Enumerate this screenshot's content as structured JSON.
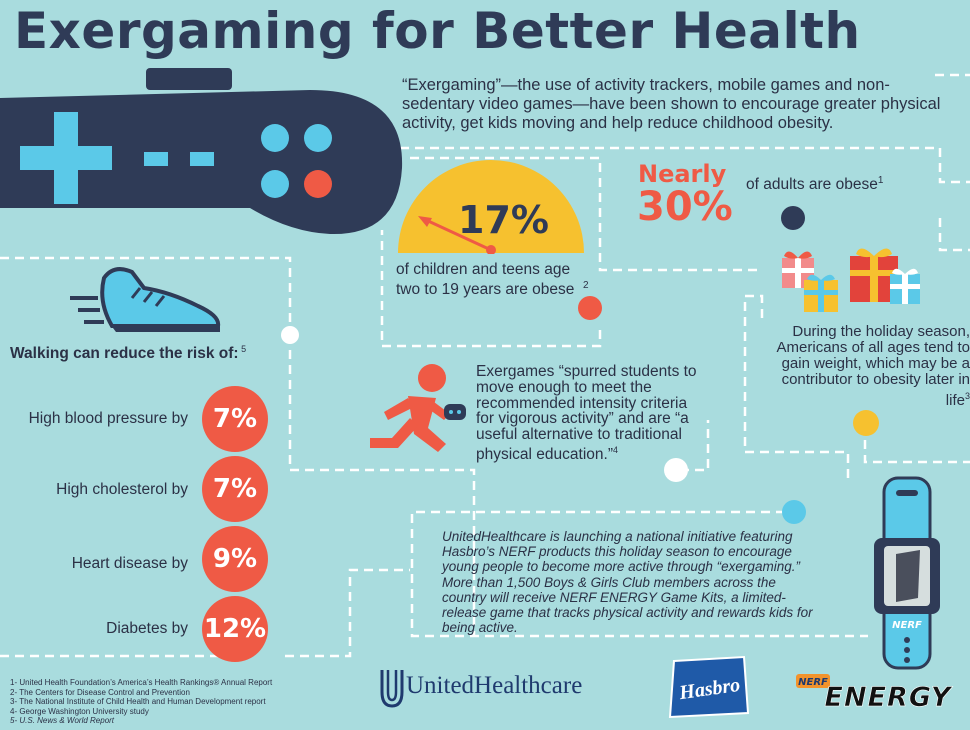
{
  "title": "Exergaming for Better Health",
  "intro": "“Exergaming”—the use of activity trackers, mobile games and non-sedentary video games—have been shown to encourage greater physical activity, get kids moving and help reduce childhood obesity.",
  "teens": {
    "percent": "17%",
    "text": "of children and teens age two to 19 years are obese",
    "footnote": "2"
  },
  "adults": {
    "prefix": "Nearly",
    "percent": "30%",
    "text": "of adults are obese",
    "footnote": "1"
  },
  "holiday": {
    "text": "During the holiday season, Americans of all ages tend to gain weight, which may be a contributor to obesity later in life",
    "footnote": "3"
  },
  "walking": {
    "heading": "Walking can reduce the risk of:",
    "footnote": "5",
    "risks": [
      {
        "label": "High blood pressure by",
        "value": "7%"
      },
      {
        "label": "High cholesterol by",
        "value": "7%"
      },
      {
        "label": "Heart disease by",
        "value": "9%"
      },
      {
        "label": "Diabetes by",
        "value": "12%"
      }
    ]
  },
  "exergames": {
    "text": "Exergames “spurred students to move enough to meet the recommended intensity criteria for vigorous activity” and are “a useful alternative to traditional physical education.”",
    "footnote": "4"
  },
  "initiative": "UnitedHealthcare is launching a national initiative featuring Hasbro’s NERF products this holiday season to encourage young people to become more active through “exergaming.” More than 1,500 Boys & Girls Club members across the country will receive NERF ENERGY Game Kits, a limited-release game that tracks physical activity and rewards kids for being active.",
  "references": [
    "1- United Health Foundation’s America’s Health Rankings® Annual Report",
    "2- The Centers for Disease Control and Prevention",
    "3- The National Institute of Child Health and Human Development report",
    "4- George Washington University study",
    "5- U.S. News & World Report"
  ],
  "logos": {
    "unitedhealthcare": "UnitedHealthcare",
    "hasbro": "Hasbro",
    "nerf": "NERF",
    "energy": "ENERGY"
  },
  "colors": {
    "background": "#a9dcde",
    "navy": "#2f3b57",
    "coral": "#ef5a45",
    "sky": "#5bc9e8",
    "yellow": "#f6c12f"
  }
}
